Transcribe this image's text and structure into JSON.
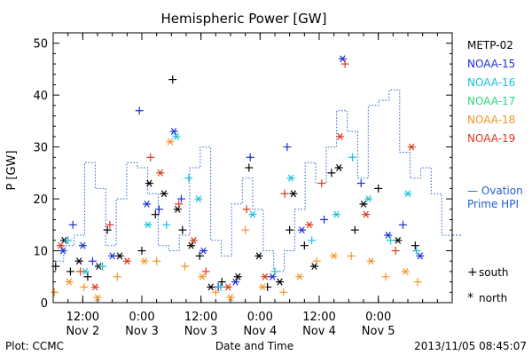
{
  "chart_data": {
    "type": "scatter",
    "title": "Hemispheric Power [GW]",
    "ylabel": "P [GW]",
    "xlabel": "Date and Time",
    "ylim": [
      0,
      52
    ],
    "yticks": [
      0,
      10,
      20,
      30,
      40,
      50
    ],
    "xlim": [
      "2013-11-02T06:00",
      "2013-11-05T15:00"
    ],
    "xticks": [
      {
        "time": "2013-11-02T12:00",
        "line1": "12:00",
        "line2": "Nov 2"
      },
      {
        "time": "2013-11-03T00:00",
        "line1": "0:00",
        "line2": "Nov 3"
      },
      {
        "time": "2013-11-03T12:00",
        "line1": "12:00",
        "line2": "Nov 3"
      },
      {
        "time": "2013-11-04T00:00",
        "line1": "0:00",
        "line2": "Nov 4"
      },
      {
        "time": "2013-11-04T12:00",
        "line1": "12:00",
        "line2": "Nov 4"
      },
      {
        "time": "2013-11-05T00:00",
        "line1": "0:00",
        "line2": "Nov 5"
      }
    ],
    "footer_left": "Plot: CCMC",
    "footer_right": "2013/11/05 08:45:07",
    "marker_legend": [
      {
        "symbol": "+",
        "label": "south"
      },
      {
        "symbol": "*",
        "label": "north"
      }
    ],
    "ovation": {
      "label_line1": "— Ovation",
      "label_line2": "Prime HPI",
      "color": "#1f5fd0",
      "values": [
        8,
        11,
        13,
        27,
        22,
        11,
        20,
        27,
        26,
        21,
        11,
        10,
        13,
        26,
        30,
        12,
        9,
        19,
        24,
        18,
        10,
        6,
        10,
        18,
        27,
        23,
        30,
        37,
        33,
        24,
        38,
        39,
        41,
        29,
        24,
        26,
        21,
        13
      ]
    },
    "series": [
      {
        "name": "METP-02",
        "color": "#000000",
        "points": [
          {
            "x": "2013-11-02T06:30",
            "y": 7
          },
          {
            "x": "2013-11-02T08:15",
            "y": 12
          },
          {
            "x": "2013-11-02T09:30",
            "y": 6
          },
          {
            "x": "2013-11-02T11:15",
            "y": 8
          },
          {
            "x": "2013-11-02T13:00",
            "y": 5
          },
          {
            "x": "2013-11-02T15:15",
            "y": 7
          },
          {
            "x": "2013-11-02T17:00",
            "y": 14
          },
          {
            "x": "2013-11-02T19:30",
            "y": 9
          },
          {
            "x": "2013-11-03T00:00",
            "y": 10
          },
          {
            "x": "2013-11-03T01:30",
            "y": 23
          },
          {
            "x": "2013-11-03T02:45",
            "y": 17
          },
          {
            "x": "2013-11-03T04:30",
            "y": 21
          },
          {
            "x": "2013-11-03T06:15",
            "y": 43
          },
          {
            "x": "2013-11-03T07:15",
            "y": 18
          },
          {
            "x": "2013-11-03T08:15",
            "y": 14
          },
          {
            "x": "2013-11-03T10:00",
            "y": 11
          },
          {
            "x": "2013-11-03T11:45",
            "y": 9
          },
          {
            "x": "2013-11-03T14:00",
            "y": 3
          },
          {
            "x": "2013-11-03T16:15",
            "y": 4
          },
          {
            "x": "2013-11-03T19:30",
            "y": 5
          },
          {
            "x": "2013-11-03T21:45",
            "y": 26
          },
          {
            "x": "2013-11-03T23:45",
            "y": 9
          },
          {
            "x": "2013-11-04T01:30",
            "y": 3
          },
          {
            "x": "2013-11-04T04:00",
            "y": 4
          },
          {
            "x": "2013-11-04T06:00",
            "y": 14
          },
          {
            "x": "2013-11-04T06:45",
            "y": 21
          },
          {
            "x": "2013-11-04T09:00",
            "y": 11
          },
          {
            "x": "2013-11-04T11:00",
            "y": 7
          },
          {
            "x": "2013-11-04T14:30",
            "y": 25
          },
          {
            "x": "2013-11-04T16:00",
            "y": 26
          },
          {
            "x": "2013-11-04T19:15",
            "y": 14
          },
          {
            "x": "2013-11-04T21:00",
            "y": 19
          },
          {
            "x": "2013-11-05T00:00",
            "y": 22
          },
          {
            "x": "2013-11-05T04:00",
            "y": 12
          },
          {
            "x": "2013-11-05T07:30",
            "y": 11
          }
        ]
      },
      {
        "name": "NOAA-15",
        "color": "#1c2fd6",
        "points": [
          {
            "x": "2013-11-02T08:00",
            "y": 10
          },
          {
            "x": "2013-11-02T10:00",
            "y": 15
          },
          {
            "x": "2013-11-02T12:00",
            "y": 11
          },
          {
            "x": "2013-11-02T14:00",
            "y": 8
          },
          {
            "x": "2013-11-02T18:00",
            "y": 9
          },
          {
            "x": "2013-11-02T23:30",
            "y": 37
          },
          {
            "x": "2013-11-03T01:00",
            "y": 19
          },
          {
            "x": "2013-11-03T03:30",
            "y": 18
          },
          {
            "x": "2013-11-03T06:30",
            "y": 33
          },
          {
            "x": "2013-11-03T08:00",
            "y": 20
          },
          {
            "x": "2013-11-03T12:30",
            "y": 10
          },
          {
            "x": "2013-11-03T15:30",
            "y": 3
          },
          {
            "x": "2013-11-03T19:00",
            "y": 4
          },
          {
            "x": "2013-11-03T22:00",
            "y": 28
          },
          {
            "x": "2013-11-04T02:30",
            "y": 5
          },
          {
            "x": "2013-11-04T05:30",
            "y": 30
          },
          {
            "x": "2013-11-04T08:30",
            "y": 14
          },
          {
            "x": "2013-11-04T13:00",
            "y": 16
          },
          {
            "x": "2013-11-04T16:45",
            "y": 47
          },
          {
            "x": "2013-11-04T20:30",
            "y": 23
          },
          {
            "x": "2013-11-05T02:00",
            "y": 13
          },
          {
            "x": "2013-11-05T05:00",
            "y": 15
          },
          {
            "x": "2013-11-05T08:30",
            "y": 9
          }
        ]
      },
      {
        "name": "NOAA-16",
        "color": "#17c1d9",
        "points": [
          {
            "x": "2013-11-02T09:00",
            "y": 12
          },
          {
            "x": "2013-11-02T12:30",
            "y": 6
          },
          {
            "x": "2013-11-02T16:00",
            "y": 7
          },
          {
            "x": "2013-11-03T01:15",
            "y": 15
          },
          {
            "x": "2013-11-03T05:00",
            "y": 15
          },
          {
            "x": "2013-11-03T07:00",
            "y": 32
          },
          {
            "x": "2013-11-03T09:30",
            "y": 24
          },
          {
            "x": "2013-11-03T11:30",
            "y": 20
          },
          {
            "x": "2013-11-03T16:00",
            "y": 3
          },
          {
            "x": "2013-11-03T22:30",
            "y": 17
          },
          {
            "x": "2013-11-04T03:00",
            "y": 6
          },
          {
            "x": "2013-11-04T06:15",
            "y": 24
          },
          {
            "x": "2013-11-04T10:30",
            "y": 12
          },
          {
            "x": "2013-11-04T15:30",
            "y": 17
          },
          {
            "x": "2013-11-04T18:45",
            "y": 28
          },
          {
            "x": "2013-11-04T22:00",
            "y": 20
          },
          {
            "x": "2013-11-05T02:30",
            "y": 12
          },
          {
            "x": "2013-11-05T06:00",
            "y": 21
          },
          {
            "x": "2013-11-05T07:45",
            "y": 10
          }
        ]
      },
      {
        "name": "NOAA-17",
        "color": "#2fd67a",
        "points": []
      },
      {
        "name": "NOAA-18",
        "color": "#f0962a",
        "points": [
          {
            "x": "2013-11-02T06:15",
            "y": 2
          },
          {
            "x": "2013-11-02T09:15",
            "y": 4
          },
          {
            "x": "2013-11-02T12:15",
            "y": 3
          },
          {
            "x": "2013-11-02T15:00",
            "y": 1
          },
          {
            "x": "2013-11-02T19:00",
            "y": 5
          },
          {
            "x": "2013-11-03T00:30",
            "y": 8
          },
          {
            "x": "2013-11-03T03:00",
            "y": 8
          },
          {
            "x": "2013-11-03T05:45",
            "y": 31
          },
          {
            "x": "2013-11-03T08:45",
            "y": 7
          },
          {
            "x": "2013-11-03T12:15",
            "y": 5
          },
          {
            "x": "2013-11-03T15:00",
            "y": 2
          },
          {
            "x": "2013-11-03T18:00",
            "y": 1
          },
          {
            "x": "2013-11-03T21:00",
            "y": 14
          },
          {
            "x": "2013-11-04T00:30",
            "y": 3
          },
          {
            "x": "2013-11-04T04:45",
            "y": 2
          },
          {
            "x": "2013-11-04T08:00",
            "y": 5
          },
          {
            "x": "2013-11-04T11:30",
            "y": 8
          },
          {
            "x": "2013-11-04T15:00",
            "y": 9
          },
          {
            "x": "2013-11-04T18:30",
            "y": 9
          },
          {
            "x": "2013-11-04T22:30",
            "y": 8
          },
          {
            "x": "2013-11-05T01:30",
            "y": 5
          },
          {
            "x": "2013-11-05T05:30",
            "y": 6
          },
          {
            "x": "2013-11-05T08:00",
            "y": 4
          }
        ]
      },
      {
        "name": "NOAA-19",
        "color": "#d93a1e",
        "points": [
          {
            "x": "2013-11-02T07:30",
            "y": 11
          },
          {
            "x": "2013-11-02T11:30",
            "y": 6
          },
          {
            "x": "2013-11-02T14:30",
            "y": 3
          },
          {
            "x": "2013-11-02T17:30",
            "y": 15
          },
          {
            "x": "2013-11-02T21:00",
            "y": 8
          },
          {
            "x": "2013-11-03T01:45",
            "y": 28
          },
          {
            "x": "2013-11-03T03:45",
            "y": 25
          },
          {
            "x": "2013-11-03T07:30",
            "y": 19
          },
          {
            "x": "2013-11-03T10:30",
            "y": 12
          },
          {
            "x": "2013-11-03T13:00",
            "y": 6
          },
          {
            "x": "2013-11-03T17:30",
            "y": 3
          },
          {
            "x": "2013-11-03T21:15",
            "y": 18
          },
          {
            "x": "2013-11-04T01:00",
            "y": 5
          },
          {
            "x": "2013-11-04T05:00",
            "y": 21
          },
          {
            "x": "2013-11-04T10:00",
            "y": 15
          },
          {
            "x": "2013-11-04T12:30",
            "y": 23
          },
          {
            "x": "2013-11-04T16:15",
            "y": 32
          },
          {
            "x": "2013-11-04T17:15",
            "y": 46
          },
          {
            "x": "2013-11-04T21:30",
            "y": 17
          },
          {
            "x": "2013-11-05T03:30",
            "y": 10
          },
          {
            "x": "2013-11-05T06:45",
            "y": 30
          }
        ]
      }
    ]
  }
}
